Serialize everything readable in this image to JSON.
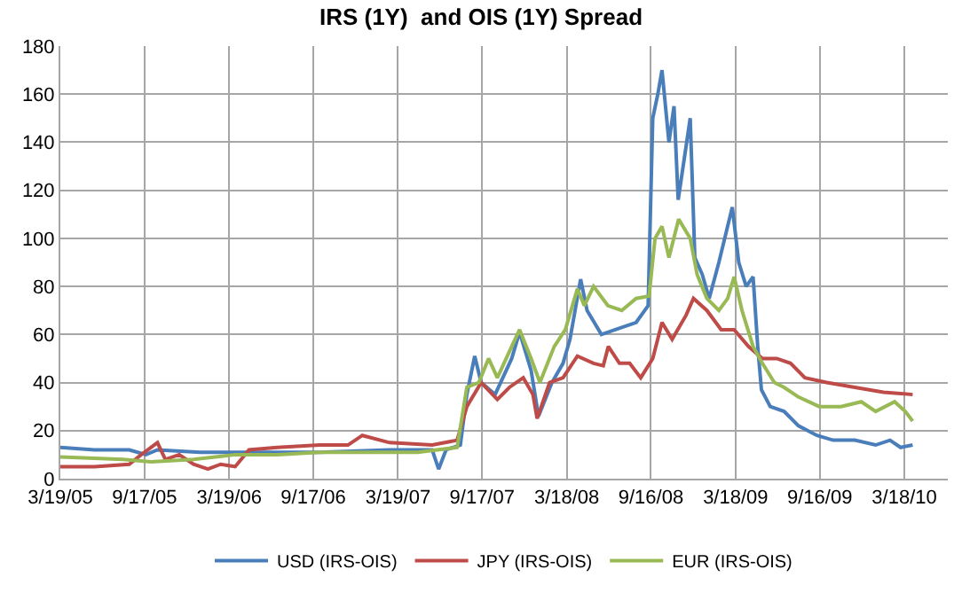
{
  "chart_data": {
    "type": "line",
    "title": "IRS (1Y)  and OIS (1Y) Spread",
    "xlim": [
      "2005-03-19",
      "2010-06-20"
    ],
    "xticks": [
      {
        "value": "2005-03-19",
        "label": "3/19/05"
      },
      {
        "value": "2005-09-17",
        "label": "9/17/05"
      },
      {
        "value": "2006-03-19",
        "label": "3/19/06"
      },
      {
        "value": "2006-09-17",
        "label": "9/17/06"
      },
      {
        "value": "2007-03-19",
        "label": "3/19/07"
      },
      {
        "value": "2007-09-17",
        "label": "9/17/07"
      },
      {
        "value": "2008-03-18",
        "label": "3/18/08"
      },
      {
        "value": "2008-09-16",
        "label": "9/16/08"
      },
      {
        "value": "2009-03-18",
        "label": "3/18/09"
      },
      {
        "value": "2009-09-16",
        "label": "9/16/09"
      },
      {
        "value": "2010-03-18",
        "label": "3/18/10"
      }
    ],
    "ylim": [
      0,
      180
    ],
    "yticks": [
      0,
      20,
      40,
      60,
      80,
      100,
      120,
      140,
      160,
      180
    ],
    "grid": true,
    "legend": "bottom",
    "marker": "none",
    "line_style": "solid",
    "series": [
      {
        "name": "USD (IRS-OIS)",
        "color": "#4a7ebb",
        "x": [
          "2005-03-19",
          "2005-06-01",
          "2005-08-15",
          "2005-09-20",
          "2005-10-15",
          "2006-01-15",
          "2006-06-01",
          "2006-10-01",
          "2007-03-01",
          "2007-06-01",
          "2007-06-15",
          "2007-07-01",
          "2007-08-01",
          "2007-08-15",
          "2007-09-01",
          "2007-09-15",
          "2007-10-15",
          "2007-11-20",
          "2007-12-07",
          "2008-01-01",
          "2008-01-17",
          "2008-02-15",
          "2008-03-10",
          "2008-03-25",
          "2008-04-17",
          "2008-05-01",
          "2008-06-01",
          "2008-07-01",
          "2008-08-15",
          "2008-09-10",
          "2008-09-20",
          "2008-10-01",
          "2008-10-10",
          "2008-10-25",
          "2008-11-05",
          "2008-11-14",
          "2008-12-10",
          "2008-12-20",
          "2009-01-05",
          "2009-01-20",
          "2009-02-10",
          "2009-03-11",
          "2009-03-25",
          "2009-04-10",
          "2009-04-25",
          "2009-05-05",
          "2009-05-13",
          "2009-06-01",
          "2009-07-01",
          "2009-08-01",
          "2009-09-10",
          "2009-10-15",
          "2009-12-01",
          "2010-01-15",
          "2010-02-15",
          "2010-03-10",
          "2010-04-05"
        ],
        "values": [
          13,
          12,
          12,
          10,
          12,
          11,
          11,
          11,
          12,
          12,
          4,
          12,
          14,
          35,
          51,
          40,
          35,
          50,
          61,
          45,
          26,
          40,
          48,
          58,
          83,
          70,
          60,
          62,
          65,
          72,
          150,
          160,
          170,
          140,
          155,
          116,
          150,
          92,
          85,
          75,
          90,
          113,
          90,
          80,
          84,
          55,
          37,
          30,
          28,
          22,
          18,
          16,
          16,
          14,
          16,
          13,
          14
        ]
      },
      {
        "name": "JPY (IRS-OIS)",
        "color": "#be4b48",
        "x": [
          "2005-03-19",
          "2005-06-01",
          "2005-08-15",
          "2005-09-10",
          "2005-10-15",
          "2005-11-01",
          "2005-12-01",
          "2006-01-01",
          "2006-02-01",
          "2006-03-01",
          "2006-04-01",
          "2006-05-01",
          "2006-07-01",
          "2006-10-01",
          "2006-12-01",
          "2007-01-01",
          "2007-03-01",
          "2007-06-01",
          "2007-07-25",
          "2007-08-15",
          "2007-09-15",
          "2007-10-20",
          "2007-11-15",
          "2007-12-15",
          "2008-01-05",
          "2008-01-14",
          "2008-02-10",
          "2008-03-10",
          "2008-04-10",
          "2008-05-15",
          "2008-06-05",
          "2008-06-16",
          "2008-07-10",
          "2008-08-01",
          "2008-08-25",
          "2008-09-20",
          "2008-10-10",
          "2008-11-01",
          "2008-12-01",
          "2008-12-17",
          "2009-01-15",
          "2009-02-15",
          "2009-03-15",
          "2009-04-15",
          "2009-05-15",
          "2009-06-15",
          "2009-07-15",
          "2009-08-15",
          "2009-10-01",
          "2009-12-01",
          "2010-02-01",
          "2010-04-05"
        ],
        "values": [
          5,
          5,
          6,
          10,
          15,
          8,
          10,
          6,
          4,
          6,
          5,
          12,
          13,
          14,
          14,
          18,
          15,
          14,
          16,
          30,
          40,
          33,
          38,
          42,
          35,
          25,
          40,
          42,
          51,
          48,
          47,
          55,
          48,
          48,
          42,
          50,
          65,
          58,
          68,
          75,
          70,
          62,
          62,
          55,
          50,
          50,
          48,
          42,
          40,
          38,
          36,
          35
        ]
      },
      {
        "name": "EUR (IRS-OIS)",
        "color": "#98b954",
        "x": [
          "2005-03-19",
          "2005-08-01",
          "2005-10-01",
          "2006-01-01",
          "2006-04-01",
          "2006-07-01",
          "2006-10-01",
          "2007-01-01",
          "2007-05-01",
          "2007-07-25",
          "2007-08-15",
          "2007-09-10",
          "2007-10-01",
          "2007-10-20",
          "2007-11-20",
          "2007-12-07",
          "2008-01-01",
          "2008-01-20",
          "2008-02-20",
          "2008-03-15",
          "2008-04-10",
          "2008-04-25",
          "2008-05-15",
          "2008-06-15",
          "2008-07-15",
          "2008-08-15",
          "2008-09-12",
          "2008-09-25",
          "2008-10-10",
          "2008-10-25",
          "2008-11-15",
          "2008-12-10",
          "2008-12-25",
          "2009-01-15",
          "2009-02-10",
          "2009-03-01",
          "2009-03-15",
          "2009-04-01",
          "2009-04-25",
          "2009-05-15",
          "2009-06-10",
          "2009-07-01",
          "2009-08-01",
          "2009-09-15",
          "2009-11-01",
          "2009-12-15",
          "2010-01-15",
          "2010-02-25",
          "2010-03-20",
          "2010-04-05"
        ],
        "values": [
          9,
          8,
          7,
          8,
          10,
          10,
          11,
          11,
          11,
          13,
          38,
          40,
          50,
          42,
          55,
          62,
          50,
          40,
          55,
          62,
          79,
          72,
          80,
          72,
          70,
          75,
          76,
          100,
          105,
          92,
          108,
          100,
          85,
          75,
          70,
          75,
          84,
          70,
          55,
          48,
          40,
          38,
          34,
          30,
          30,
          32,
          28,
          32,
          28,
          24
        ]
      }
    ]
  }
}
